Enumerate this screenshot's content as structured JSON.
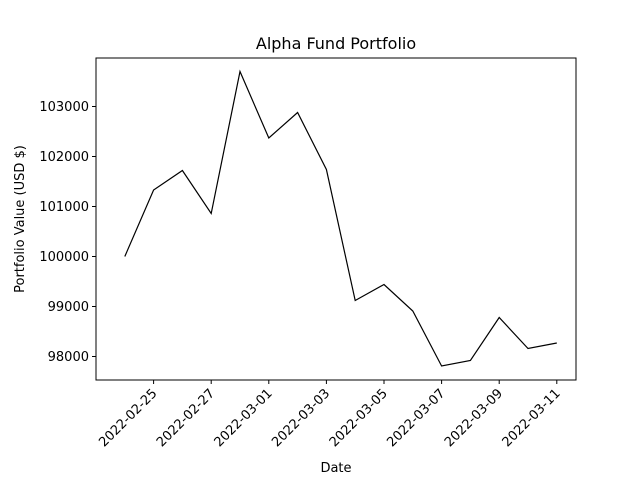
{
  "chart_data": {
    "type": "line",
    "title": "Alpha Fund Portfolio",
    "xlabel": "Date",
    "ylabel": "Portfolio Value (USD $)",
    "grid": false,
    "legend": "none",
    "line_color": "#000000",
    "x_tick_labels": [
      "2022-02-25",
      "2022-02-27",
      "2022-03-01",
      "2022-03-03",
      "2022-03-05",
      "2022-03-07",
      "2022-03-09",
      "2022-03-11"
    ],
    "y_tick_values": [
      98000,
      99000,
      100000,
      101000,
      102000,
      103000
    ],
    "y_tick_labels": [
      "98000",
      "99000",
      "100000",
      "101000",
      "102000",
      "103000"
    ],
    "xlim": [
      "2022-02-23T00:00",
      "2022-03-11T16:00"
    ],
    "ylim": [
      97530,
      103970
    ],
    "series": [
      {
        "x": [
          "2022-02-24",
          "2022-02-25",
          "2022-02-26",
          "2022-02-27",
          "2022-02-28",
          "2022-03-01",
          "2022-03-02",
          "2022-03-03",
          "2022-03-04",
          "2022-03-05",
          "2022-03-06",
          "2022-03-07",
          "2022-03-08",
          "2022-03-09",
          "2022-03-10",
          "2022-03-11"
        ],
        "y": [
          100000,
          101330,
          101720,
          100860,
          103700,
          102370,
          102880,
          101740,
          99120,
          99440,
          98910,
          97810,
          97920,
          98780,
          98160,
          98270
        ]
      }
    ]
  }
}
